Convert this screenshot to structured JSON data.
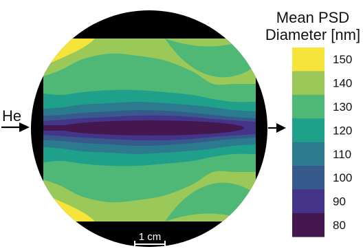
{
  "chart_data": {
    "type": "heatmap",
    "title": "",
    "colorbar": {
      "title_line1": "Mean PSD",
      "title_line2": "Diameter [nm]",
      "levels": [
        150,
        140,
        130,
        120,
        110,
        100,
        90,
        80
      ],
      "colors": [
        "#f7e43a",
        "#9ac95a",
        "#4fb877",
        "#1fa08a",
        "#2c7a8e",
        "#375a8c",
        "#44358b",
        "#45174f"
      ]
    },
    "annotations": {
      "inlet_label": "He",
      "scale_bar_label": "1 cm"
    },
    "background_color": "#000000"
  }
}
